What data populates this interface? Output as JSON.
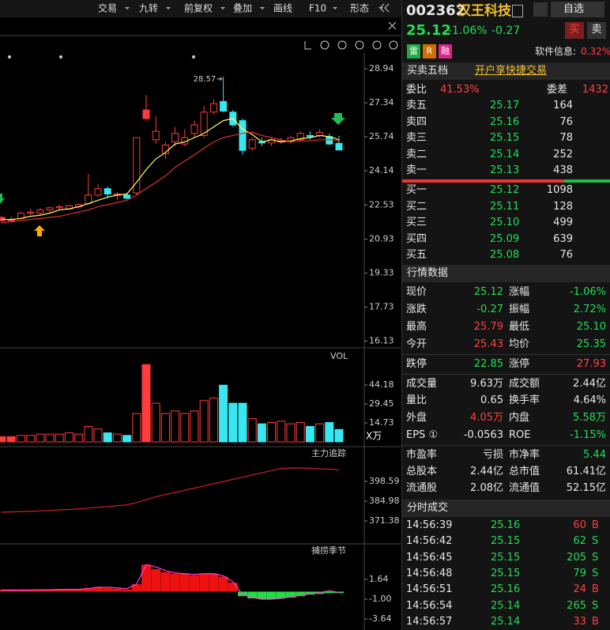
{
  "toolbar": [
    "交易",
    "九转",
    "前复权",
    "叠加",
    "画线",
    "F10",
    "形态"
  ],
  "main": {
    "ylim": [
      15.89,
      29.72
    ],
    "yticks": [
      28.94,
      27.34,
      25.74,
      24.14,
      22.53,
      20.93,
      19.33,
      17.73,
      16.13
    ],
    "high_label": 28.57,
    "ohlc": [
      [
        21.95,
        22.0,
        21.7,
        21.8
      ],
      [
        21.85,
        22.0,
        21.75,
        21.8
      ],
      [
        21.9,
        22.2,
        21.85,
        22.15
      ],
      [
        22.15,
        22.35,
        22.05,
        22.2
      ],
      [
        22.15,
        22.4,
        22.05,
        22.3
      ],
      [
        22.3,
        22.45,
        22.2,
        22.4
      ],
      [
        22.4,
        22.55,
        22.3,
        22.45
      ],
      [
        22.35,
        22.55,
        22.3,
        22.5
      ],
      [
        22.45,
        22.6,
        22.35,
        22.55
      ],
      [
        22.6,
        24.0,
        22.55,
        23.0
      ],
      [
        23.0,
        23.5,
        22.9,
        23.3
      ],
      [
        23.3,
        23.4,
        22.85,
        23.05
      ],
      [
        23.0,
        23.15,
        22.75,
        23.05
      ],
      [
        23.0,
        23.1,
        22.8,
        22.85
      ],
      [
        23.1,
        25.7,
        23.0,
        25.7
      ],
      [
        27.0,
        27.7,
        26.5,
        26.6
      ],
      [
        25.6,
        26.7,
        25.4,
        26.0
      ],
      [
        24.95,
        25.5,
        24.7,
        25.35
      ],
      [
        25.5,
        26.2,
        25.3,
        25.9
      ],
      [
        25.4,
        26.1,
        25.3,
        25.7
      ],
      [
        25.9,
        26.5,
        25.7,
        26.3
      ],
      [
        25.8,
        27.2,
        25.7,
        26.9
      ],
      [
        26.9,
        27.5,
        26.8,
        27.3
      ],
      [
        27.4,
        28.57,
        26.9,
        26.95
      ],
      [
        26.9,
        27.0,
        26.2,
        26.3
      ],
      [
        26.5,
        26.6,
        24.9,
        25.1
      ],
      [
        25.2,
        25.7,
        25.1,
        25.6
      ],
      [
        25.5,
        25.7,
        25.3,
        25.45
      ],
      [
        25.45,
        25.7,
        25.3,
        25.6
      ],
      [
        25.5,
        25.7,
        25.4,
        25.55
      ],
      [
        25.5,
        25.8,
        25.4,
        25.7
      ],
      [
        25.6,
        26.0,
        25.5,
        25.9
      ],
      [
        25.8,
        26.0,
        25.6,
        25.75
      ],
      [
        25.8,
        26.1,
        25.7,
        25.95
      ],
      [
        25.75,
        25.9,
        25.35,
        25.4
      ],
      [
        25.43,
        25.79,
        25.1,
        25.12
      ]
    ],
    "ma5": [
      21.85,
      21.85,
      21.9,
      22.0,
      22.05,
      22.15,
      22.3,
      22.35,
      22.45,
      22.6,
      22.75,
      22.9,
      23.0,
      23.05,
      23.6,
      24.2,
      24.7,
      25.0,
      25.4,
      25.5,
      25.7,
      25.9,
      26.2,
      26.5,
      26.6,
      26.1,
      25.85,
      25.5,
      25.6,
      25.5,
      25.55,
      25.65,
      25.7,
      25.8,
      25.75,
      25.6
    ],
    "ma10": [
      21.7,
      21.75,
      21.8,
      21.85,
      21.9,
      21.95,
      22.0,
      22.1,
      22.2,
      22.3,
      22.45,
      22.55,
      22.65,
      22.75,
      23.0,
      23.3,
      23.6,
      23.9,
      24.3,
      24.6,
      24.9,
      25.2,
      25.5,
      25.7,
      25.8,
      25.9,
      25.95,
      25.8,
      25.7,
      25.6,
      25.5,
      25.55,
      25.55,
      25.6,
      25.6,
      25.55
    ]
  },
  "volume": {
    "label": "VOL",
    "unit": "X万",
    "ylim": [
      0,
      63.8
    ],
    "yticks": [
      44.18,
      29.45,
      14.73
    ],
    "values": [
      4,
      4,
      5,
      5,
      6,
      6,
      6,
      7,
      6,
      12,
      10,
      7,
      6,
      5,
      22,
      60,
      30,
      22,
      24,
      22,
      24,
      32,
      34,
      44,
      30,
      30,
      18,
      14,
      15,
      16,
      14,
      15,
      12,
      14,
      15,
      9.63
    ]
  },
  "zhuli": {
    "label": "主力追踪",
    "ylim": [
      357.3,
      411.6
    ],
    "yticks": [
      398.59,
      384.98,
      371.38
    ],
    "values": [
      377.4,
      377.6,
      377.8,
      378,
      378.3,
      378.6,
      379,
      379.3,
      379.7,
      380.2,
      380.8,
      381.3,
      381.8,
      382.5,
      384,
      386,
      388,
      389.5,
      391,
      392.5,
      394,
      395.5,
      397,
      398.5,
      400,
      401.5,
      403,
      404.5,
      406,
      407.5,
      407.8,
      407.8,
      407.6,
      407.3,
      407,
      406.4
    ]
  },
  "buhuo": {
    "label": "捕捞季节",
    "ylim": [
      -4.38,
      3.85
    ],
    "yticks": [
      1.64,
      {
        "value": -1,
        "label": "-1.00"
      },
      -3.64
    ],
    "bars": [
      0.3,
      0.3,
      0.3,
      0.3,
      0.3,
      0.3,
      0.3,
      0.3,
      0.3,
      0.5,
      0.6,
      0.5,
      0.4,
      0.3,
      1.0,
      3.6,
      3.0,
      2.6,
      2.4,
      2.4,
      2.2,
      2.4,
      2.4,
      2.0,
      1.2,
      -0.6,
      -0.9,
      -1.0,
      -1.0,
      -0.9,
      -0.8,
      -0.6,
      -0.4,
      -0.3,
      -0.2,
      -0.2
    ],
    "line": [
      0.2,
      0.2,
      0.2,
      0.2,
      0.25,
      0.25,
      0.3,
      0.3,
      0.3,
      0.4,
      0.6,
      0.6,
      0.5,
      0.4,
      1.0,
      3.6,
      3.3,
      2.8,
      2.5,
      2.4,
      2.3,
      2.4,
      2.4,
      2.1,
      1.3,
      -0.4,
      -0.8,
      -1.0,
      -1.0,
      -0.9,
      -0.7,
      -0.5,
      -0.3,
      -0.1,
      0.1,
      -0.1
    ]
  },
  "quote": {
    "code": "002362",
    "name": "汉王科技",
    "watch": "自选",
    "price": "25.12",
    "change_pct": "-1.06%",
    "change": "-0.27",
    "buy": "买",
    "sell": "卖",
    "tags": [
      "雷",
      "R",
      "融"
    ],
    "sector": "软件信息:",
    "sector_pct": "0.32%"
  },
  "orderbook": {
    "title": "买卖五档",
    "promo": "开户享快捷交易",
    "ratio_label": "委比",
    "ratio": "41.53%",
    "diff_label": "委差",
    "diff": "1432",
    "asks": [
      [
        "卖五",
        "25.17",
        "164"
      ],
      [
        "卖四",
        "25.16",
        "76"
      ],
      [
        "卖三",
        "25.15",
        "78"
      ],
      [
        "卖二",
        "25.14",
        "252"
      ],
      [
        "卖一",
        "25.13",
        "438"
      ]
    ],
    "bids": [
      [
        "买一",
        "25.12",
        "1098"
      ],
      [
        "买二",
        "25.11",
        "128"
      ],
      [
        "买三",
        "25.10",
        "499"
      ],
      [
        "买四",
        "25.09",
        "639"
      ],
      [
        "买五",
        "25.08",
        "76"
      ]
    ]
  },
  "stats": {
    "title": "行情数据",
    "rows": [
      [
        "现价",
        "25.12",
        "涨幅",
        "-1.06%"
      ],
      [
        "涨跌",
        "-0.27",
        "振幅",
        "2.72%"
      ],
      [
        "最高",
        "25.79",
        "最低",
        "25.10"
      ],
      [
        "今开",
        "25.43",
        "均价",
        "25.35"
      ],
      [
        "跌停",
        "22.85",
        "涨停",
        "27.93"
      ],
      [
        "成交量",
        "9.63万",
        "成交额",
        "2.44亿"
      ],
      [
        "量比",
        "0.65",
        "换手率",
        "4.64%"
      ],
      [
        "外盘",
        "4.05万",
        "内盘",
        "5.58万"
      ],
      [
        "EPS ①",
        "-0.0563",
        "ROE",
        "-1.15%"
      ],
      [
        "市盈率",
        "亏损",
        "市净率",
        "5.44"
      ],
      [
        "总股本",
        "2.44亿",
        "总市值",
        "61.41亿"
      ],
      [
        "流通股",
        "2.08亿",
        "流通值",
        "52.15亿"
      ]
    ]
  },
  "trades": {
    "title": "分时成交",
    "rows": [
      [
        "14:56:39",
        "25.16",
        "60",
        "B"
      ],
      [
        "14:56:42",
        "25.15",
        "62",
        "S"
      ],
      [
        "14:56:45",
        "25.15",
        "205",
        "S"
      ],
      [
        "14:56:48",
        "25.15",
        "79",
        "S"
      ],
      [
        "14:56:51",
        "25.16",
        "24",
        "B"
      ],
      [
        "14:56:54",
        "25.14",
        "265",
        "S"
      ],
      [
        "14:56:57",
        "25.14",
        "33",
        "B"
      ]
    ]
  }
}
